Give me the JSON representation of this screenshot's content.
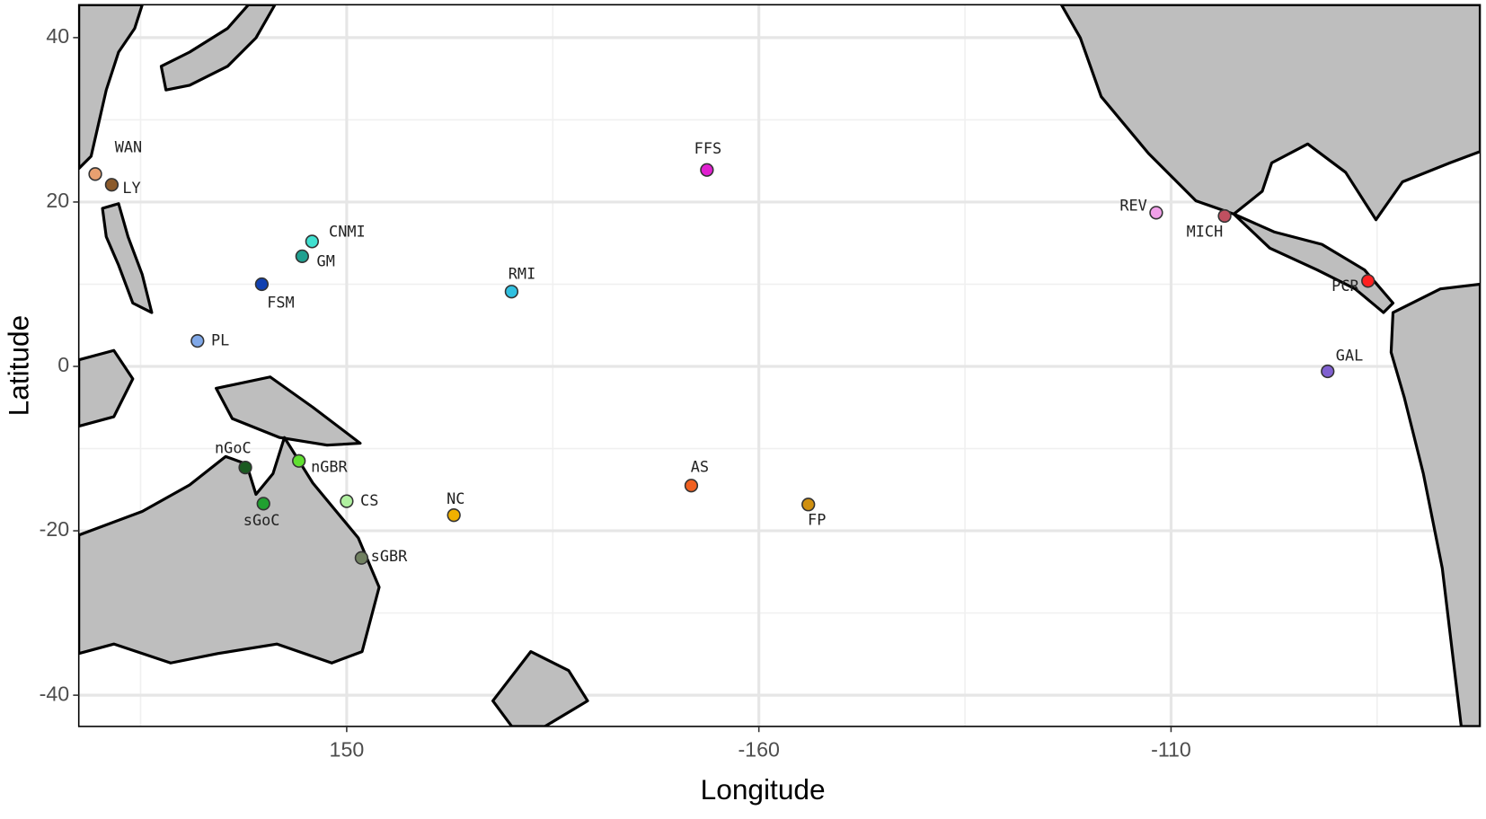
{
  "chart_data": {
    "type": "scatter",
    "x_label": "Longitude",
    "y_label": "Latitude",
    "labels": [
      "WAN",
      "LY",
      "CNMI",
      "GM",
      "FSM",
      "PL",
      "RMI",
      "FFS",
      "REV",
      "MICH",
      "PCR",
      "GAL",
      "nGoC",
      "sGoC",
      "nGBR",
      "CS",
      "NC",
      "AS",
      "FP",
      "sGBR"
    ],
    "x": [
      119.5,
      121.5,
      145.8,
      144.6,
      139.7,
      131.9,
      170.0,
      193.7,
      248.2,
      256.5,
      273.9,
      269.0,
      137.7,
      139.9,
      144.2,
      150.0,
      163.0,
      191.8,
      206.0,
      151.8
    ],
    "y": [
      23.4,
      22.1,
      15.2,
      13.4,
      10.0,
      3.1,
      9.1,
      23.9,
      18.7,
      18.3,
      10.4,
      -0.6,
      -12.3,
      -16.7,
      -11.5,
      -16.4,
      -18.1,
      -14.5,
      -16.8,
      -23.3
    ],
    "colors": [
      "#e8a070",
      "#8b5a2b",
      "#40e0d0",
      "#20a090",
      "#1040b0",
      "#80a8e8",
      "#30c0e0",
      "#e020d0",
      "#f0a0e8",
      "#c05060",
      "#ff2020",
      "#8060d0",
      "#1a5a20",
      "#20a030",
      "#60e030",
      "#b0f0a0",
      "#f0b000",
      "#f06020",
      "#d09010",
      "#708060"
    ],
    "xlim": [
      117.5,
      287.5
    ],
    "ylim": [
      -43.8,
      44
    ],
    "xticks": [
      150,
      {
        "value": 200,
        "label": "-160"
      },
      {
        "value": 250,
        "label": "-110"
      }
    ],
    "yticks": [
      -40,
      -20,
      0,
      20,
      40
    ],
    "x_minor_ticks": [
      125,
      175,
      225,
      275
    ],
    "y_minor_ticks": [
      -30,
      -10,
      10,
      30
    ],
    "grid": true
  }
}
